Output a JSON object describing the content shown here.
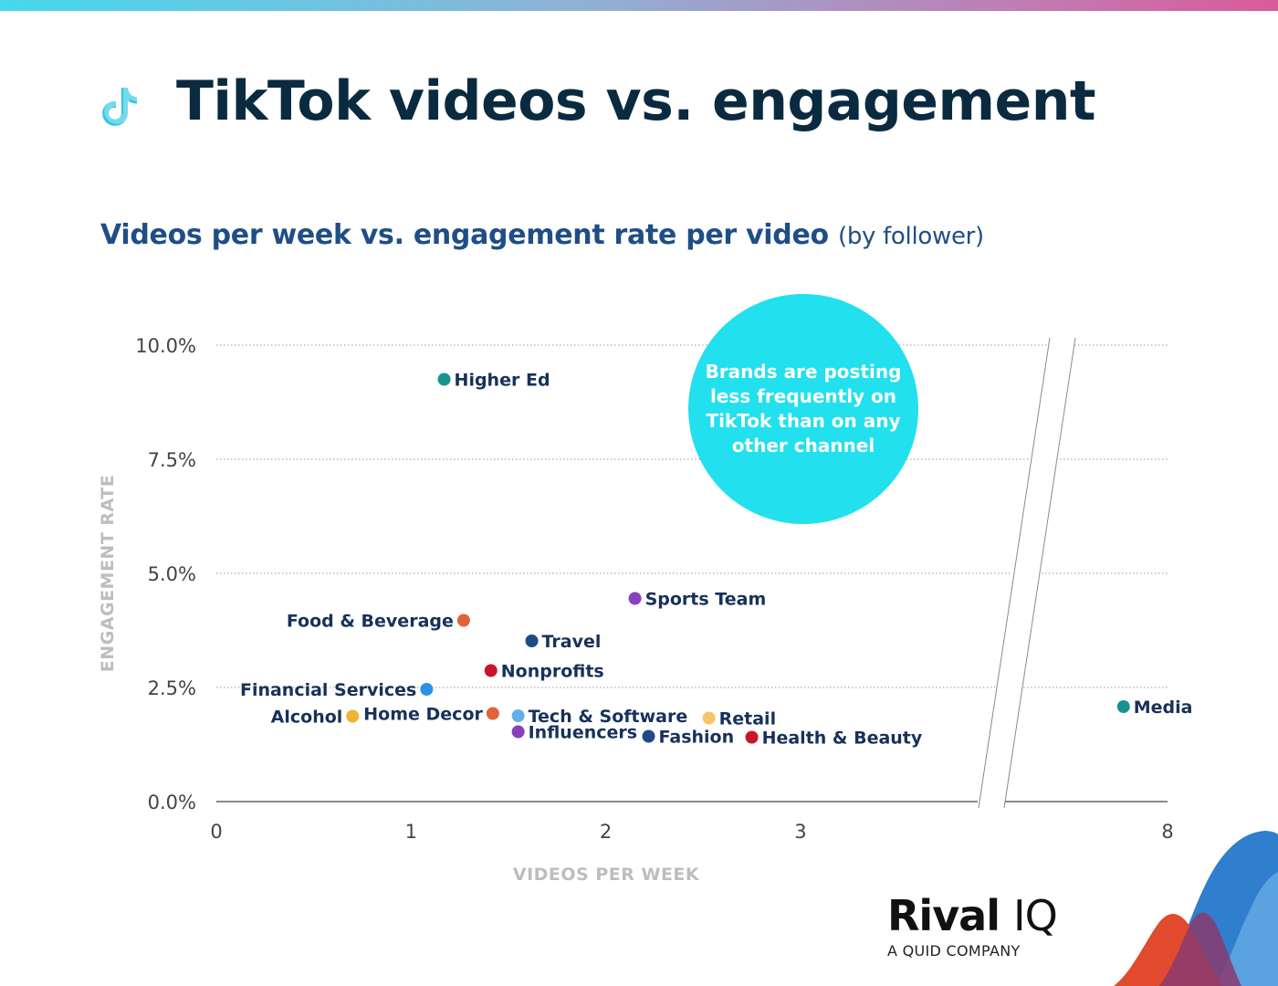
{
  "header": {
    "title": "TikTok videos vs. engagement",
    "subtitle": "Videos per week vs. engagement rate per video",
    "subtitle_note": "(by follower)"
  },
  "callout": {
    "text": "Brands are posting less frequently on TikTok than on any other channel"
  },
  "brand": {
    "name_main": "Rival",
    "name_suffix": "IQ",
    "tagline": "A QUID COMPANY"
  },
  "icons": {
    "header_logo": "tiktok-icon"
  },
  "colors": {
    "teal": "#1a9390",
    "purple": "#8a3fbd",
    "orange": "#e0643a",
    "navy": "#1f4a87",
    "red": "#c9142d",
    "blue": "#2f8fe6",
    "yellow": "#f2b233",
    "light_blue": "#5fb0ea",
    "light_orange": "#f8c46a",
    "callout_fill": "#22e0ee",
    "title": "#0a2a40",
    "subtitle": "#1f4e86"
  },
  "chart_data": {
    "type": "scatter",
    "xlabel": "VIDEOS PER WEEK",
    "ylabel": "ENGAGEMENT RATE",
    "x_ticks": [
      {
        "value": 0,
        "label": "0"
      },
      {
        "value": 1,
        "label": "1"
      },
      {
        "value": 2,
        "label": "2"
      },
      {
        "value": 3,
        "label": "3"
      },
      {
        "value": 8,
        "label": "8"
      }
    ],
    "y_ticks": [
      {
        "value": 0,
        "label": "0.0%"
      },
      {
        "value": 2.5,
        "label": "2.5%"
      },
      {
        "value": 5,
        "label": "5.0%"
      },
      {
        "value": 7.5,
        "label": "7.5%"
      },
      {
        "value": 10,
        "label": "10.0%"
      }
    ],
    "ylim": [
      0,
      10
    ],
    "x_axis_break": {
      "from": 3.9,
      "to": 7.3
    },
    "grid": "horizontal dotted",
    "points": [
      {
        "name": "Higher Ed",
        "x": 1.17,
        "y": 9.25,
        "color": "#1a9390",
        "label_side": "right"
      },
      {
        "name": "Sports Team",
        "x": 2.15,
        "y": 4.45,
        "color": "#8a3fbd",
        "label_side": "right"
      },
      {
        "name": "Food & Beverage",
        "x": 1.27,
        "y": 3.97,
        "color": "#e0643a",
        "label_side": "left"
      },
      {
        "name": "Travel",
        "x": 1.62,
        "y": 3.52,
        "color": "#1f4a87",
        "label_side": "right"
      },
      {
        "name": "Nonprofits",
        "x": 1.41,
        "y": 2.87,
        "color": "#c9142d",
        "label_side": "right"
      },
      {
        "name": "Financial Services",
        "x": 1.08,
        "y": 2.46,
        "color": "#2f8fe6",
        "label_side": "left"
      },
      {
        "name": "Alcohol",
        "x": 0.7,
        "y": 1.87,
        "color": "#f2b233",
        "label_side": "left"
      },
      {
        "name": "Home Decor",
        "x": 1.42,
        "y": 1.93,
        "color": "#e0643a",
        "label_side": "left"
      },
      {
        "name": "Tech & Software",
        "x": 1.55,
        "y": 1.88,
        "color": "#5fb0ea",
        "label_side": "right"
      },
      {
        "name": "Retail",
        "x": 2.53,
        "y": 1.83,
        "color": "#f8c46a",
        "label_side": "right"
      },
      {
        "name": "Influencers",
        "x": 1.55,
        "y": 1.53,
        "color": "#8a3fbd",
        "label_side": "right"
      },
      {
        "name": "Fashion",
        "x": 2.22,
        "y": 1.43,
        "color": "#1f4a87",
        "label_side": "right"
      },
      {
        "name": "Health & Beauty",
        "x": 2.75,
        "y": 1.41,
        "color": "#c9142d",
        "label_side": "right"
      },
      {
        "name": "Media",
        "x": 7.4,
        "y": 2.08,
        "color": "#1a9390",
        "label_side": "right"
      }
    ]
  }
}
